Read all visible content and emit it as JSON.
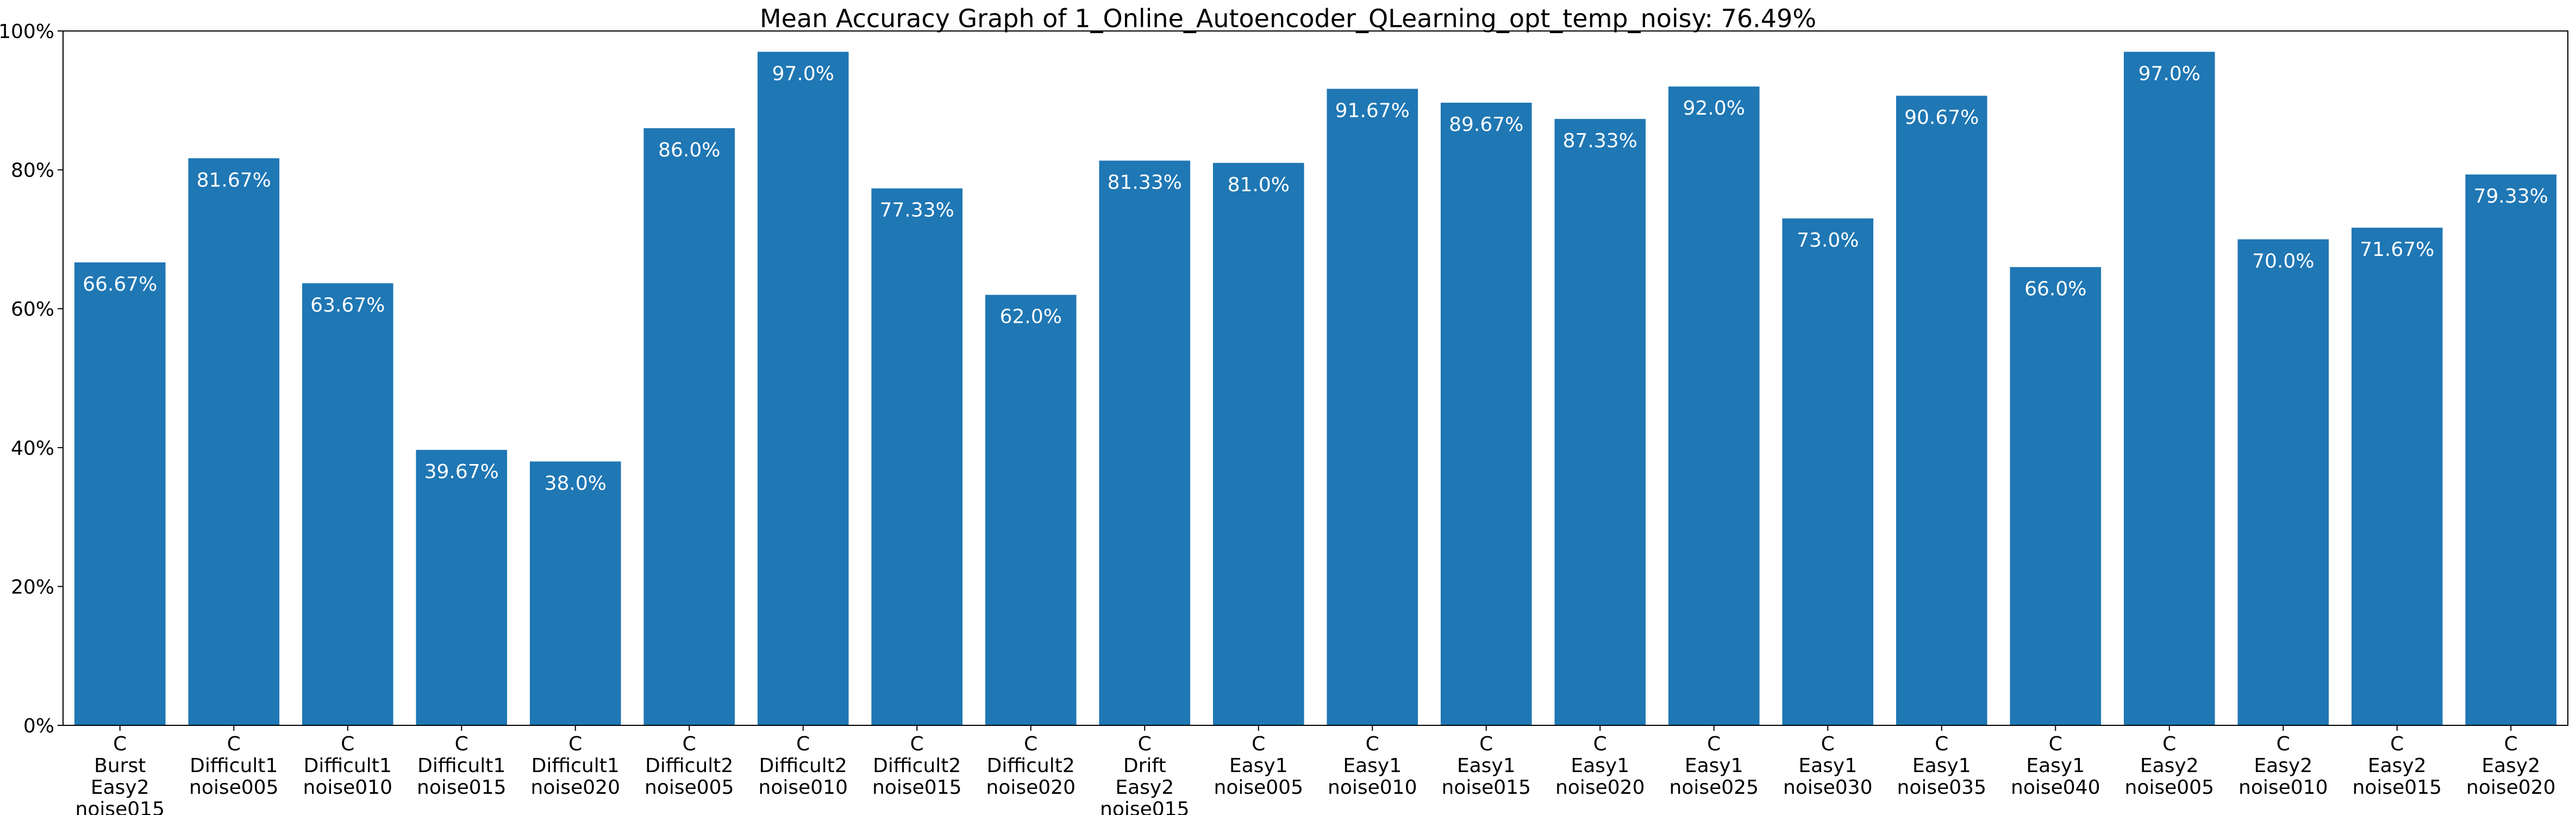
{
  "chart_data": {
    "type": "bar",
    "title": "Mean Accuracy Graph of 1_Online_Autoencoder_QLearning_opt_temp_noisy: 76.49%",
    "xlabel": "",
    "ylabel": "",
    "ylim": [
      0,
      100
    ],
    "grid": false,
    "bar_color": "#1f77b4",
    "y_ticks": [
      {
        "value": 0,
        "label": "0%"
      },
      {
        "value": 20,
        "label": "20%"
      },
      {
        "value": 40,
        "label": "40%"
      },
      {
        "value": 60,
        "label": "60%"
      },
      {
        "value": 80,
        "label": "80%"
      },
      {
        "value": 100,
        "label": "100%"
      }
    ],
    "categories": [
      [
        "C",
        "Burst",
        "Easy2",
        "noise015"
      ],
      [
        "C",
        "Difficult1",
        "noise005"
      ],
      [
        "C",
        "Difficult1",
        "noise010"
      ],
      [
        "C",
        "Difficult1",
        "noise015"
      ],
      [
        "C",
        "Difficult1",
        "noise020"
      ],
      [
        "C",
        "Difficult2",
        "noise005"
      ],
      [
        "C",
        "Difficult2",
        "noise010"
      ],
      [
        "C",
        "Difficult2",
        "noise015"
      ],
      [
        "C",
        "Difficult2",
        "noise020"
      ],
      [
        "C",
        "Drift",
        "Easy2",
        "noise015"
      ],
      [
        "C",
        "Easy1",
        "noise005"
      ],
      [
        "C",
        "Easy1",
        "noise010"
      ],
      [
        "C",
        "Easy1",
        "noise015"
      ],
      [
        "C",
        "Easy1",
        "noise020"
      ],
      [
        "C",
        "Easy1",
        "noise025"
      ],
      [
        "C",
        "Easy1",
        "noise030"
      ],
      [
        "C",
        "Easy1",
        "noise035"
      ],
      [
        "C",
        "Easy1",
        "noise040"
      ],
      [
        "C",
        "Easy2",
        "noise005"
      ],
      [
        "C",
        "Easy2",
        "noise010"
      ],
      [
        "C",
        "Easy2",
        "noise015"
      ],
      [
        "C",
        "Easy2",
        "noise020"
      ]
    ],
    "values": [
      66.67,
      81.67,
      63.67,
      39.67,
      38.0,
      86.0,
      97.0,
      77.33,
      62.0,
      81.33,
      81.0,
      91.67,
      89.67,
      87.33,
      92.0,
      73.0,
      90.67,
      66.0,
      97.0,
      70.0,
      71.67,
      79.33
    ],
    "value_labels": [
      "66.67%",
      "81.67%",
      "63.67%",
      "39.67%",
      "38.0%",
      "86.0%",
      "97.0%",
      "77.33%",
      "62.0%",
      "81.33%",
      "81.0%",
      "91.67%",
      "89.67%",
      "87.33%",
      "92.0%",
      "73.0%",
      "90.67%",
      "66.0%",
      "97.0%",
      "70.0%",
      "71.67%",
      "79.33%"
    ]
  }
}
